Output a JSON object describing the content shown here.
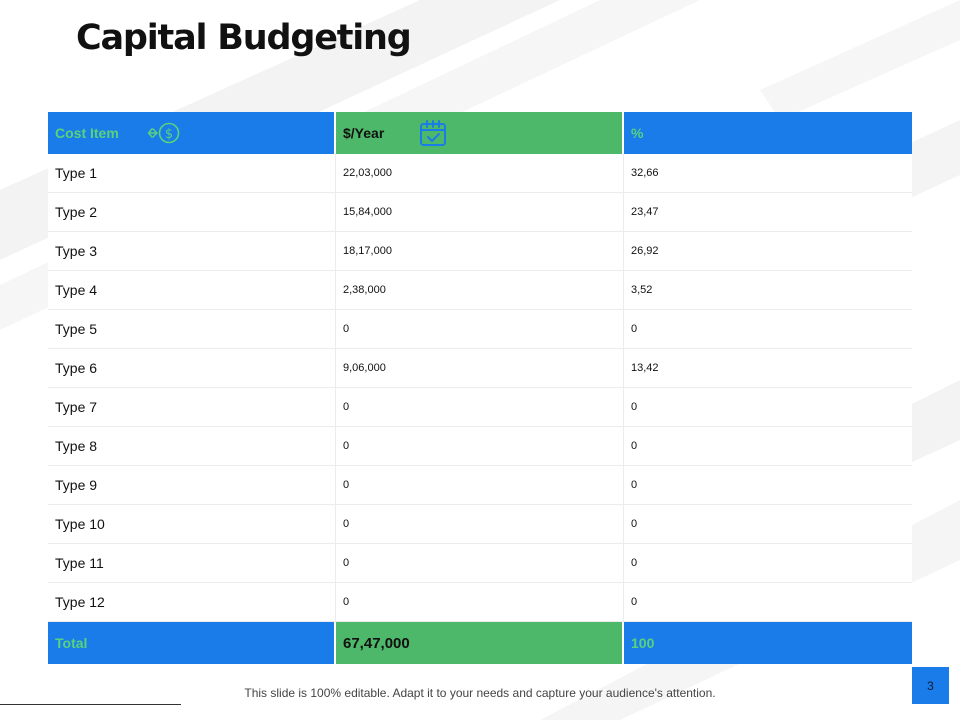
{
  "slide": {
    "title": "Capital Budgeting",
    "page_number": "3",
    "footer_note": "This slide is 100% editable. Adapt it to your needs and capture your audience's attention."
  },
  "table": {
    "headers": {
      "cost_item": "Cost Item",
      "per_year": "$/Year",
      "percent": "%"
    },
    "header_icons": {
      "cost_item": "dollar-transfer-icon",
      "per_year": "calendar-check-icon"
    },
    "rows": [
      {
        "item": "Type 1",
        "per_year": "22,03,000",
        "percent": "32,66"
      },
      {
        "item": "Type 2",
        "per_year": "15,84,000",
        "percent": "23,47"
      },
      {
        "item": "Type 3",
        "per_year": "18,17,000",
        "percent": "26,92"
      },
      {
        "item": "Type 4",
        "per_year": "2,38,000",
        "percent": "3,52"
      },
      {
        "item": "Type 5",
        "per_year": "0",
        "percent": "0"
      },
      {
        "item": "Type 6",
        "per_year": "9,06,000",
        "percent": "13,42"
      },
      {
        "item": "Type 7",
        "per_year": "0",
        "percent": "0"
      },
      {
        "item": "Type 8",
        "per_year": "0",
        "percent": "0"
      },
      {
        "item": "Type 9",
        "per_year": "0",
        "percent": "0"
      },
      {
        "item": "Type 10",
        "per_year": "0",
        "percent": "0"
      },
      {
        "item": "Type 11",
        "per_year": "0",
        "percent": "0"
      },
      {
        "item": "Type 12",
        "per_year": "0",
        "percent": "0"
      }
    ],
    "total": {
      "label": "Total",
      "per_year": "67,47,000",
      "percent": "100"
    }
  },
  "colors": {
    "blue": "#1a7ce8",
    "green": "#4eb86a",
    "light_green_text": "#59d27d"
  }
}
